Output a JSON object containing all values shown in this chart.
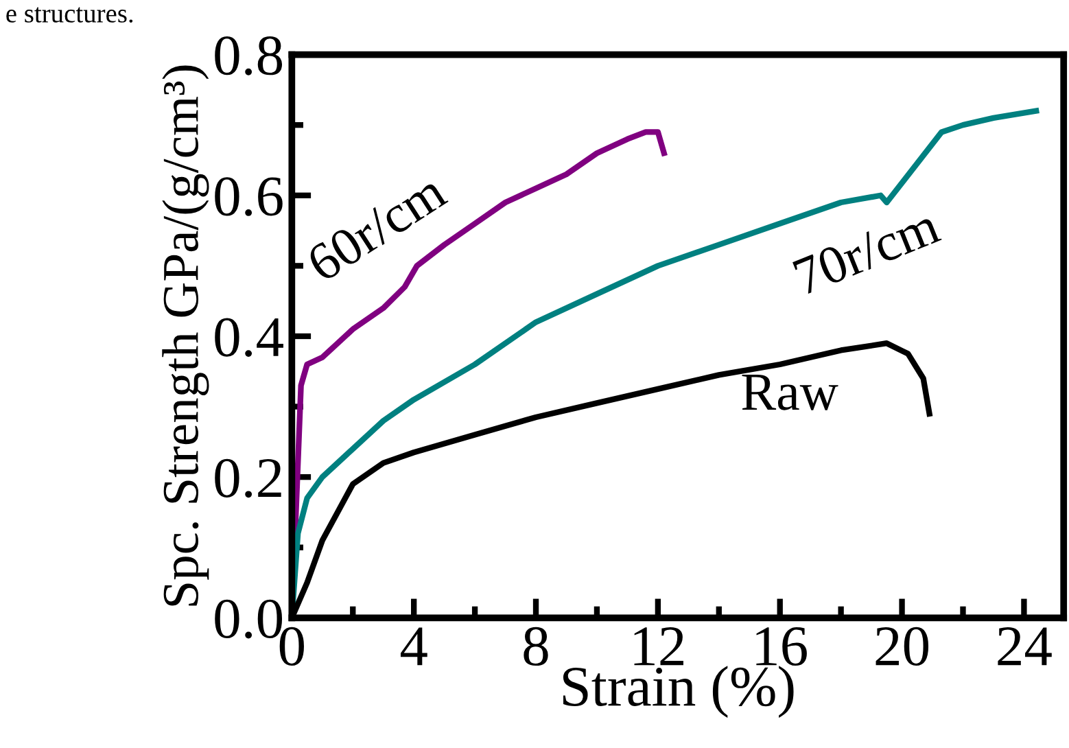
{
  "chart_data": {
    "type": "line",
    "xlabel": "Strain (%)",
    "ylabel": "Spc. Strength GPa/(g/cm³)",
    "annotations": [
      "e structures."
    ],
    "xlim": [
      0,
      25.3
    ],
    "ylim": [
      0,
      0.8
    ],
    "xticks": [
      0,
      {
        "value": 2,
        "label": null
      },
      4,
      {
        "value": 6,
        "label": null
      },
      8,
      {
        "value": 10,
        "label": null
      },
      12,
      {
        "value": 14,
        "label": null
      },
      16,
      {
        "value": 18,
        "label": null
      },
      20,
      {
        "value": 22,
        "label": null
      },
      24
    ],
    "yticks": [
      {
        "value": 0,
        "label": "0.0"
      },
      {
        "value": 0.1,
        "label": null
      },
      0.2,
      {
        "value": 0.3,
        "label": null
      },
      0.4,
      {
        "value": 0.5,
        "label": null
      },
      0.6,
      {
        "value": 0.7,
        "label": null
      },
      0.8
    ],
    "grid": false,
    "legend": false,
    "marker": "none",
    "line_style": "solid",
    "series": [
      {
        "name": "60r/cm",
        "color": "#800080",
        "x": [
          0,
          0.3,
          0.5,
          1,
          1.5,
          2,
          3,
          3.7,
          4.1,
          5,
          6,
          7,
          8,
          9,
          10,
          11,
          11.6,
          12,
          12.2
        ],
        "values": [
          0,
          0.33,
          0.36,
          0.37,
          0.39,
          0.41,
          0.44,
          0.47,
          0.5,
          0.53,
          0.56,
          0.59,
          0.61,
          0.63,
          0.66,
          0.68,
          0.69,
          0.69,
          0.66
        ]
      },
      {
        "name": "70r/cm",
        "color": "#008080",
        "x": [
          0,
          0.2,
          0.5,
          1,
          2,
          3,
          4,
          6,
          8,
          10,
          12,
          14,
          16,
          18,
          19.3,
          19.5,
          21.3,
          22,
          23,
          24.4
        ],
        "values": [
          0,
          0.12,
          0.17,
          0.2,
          0.24,
          0.28,
          0.31,
          0.36,
          0.42,
          0.46,
          0.5,
          0.53,
          0.56,
          0.59,
          0.6,
          0.59,
          0.69,
          0.7,
          0.71,
          0.72
        ]
      },
      {
        "name": "Raw",
        "color": "#000000",
        "x": [
          0,
          0.5,
          1,
          1.5,
          2,
          3,
          4,
          6,
          8,
          10,
          12,
          14,
          16,
          18,
          19.5,
          20.2,
          20.7,
          20.9
        ],
        "values": [
          0,
          0.05,
          0.11,
          0.15,
          0.19,
          0.22,
          0.235,
          0.26,
          0.285,
          0.305,
          0.325,
          0.345,
          0.36,
          0.38,
          0.39,
          0.375,
          0.34,
          0.29
        ]
      }
    ]
  }
}
